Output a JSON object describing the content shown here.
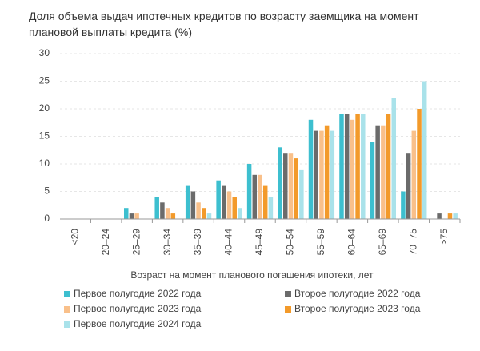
{
  "chart_data": {
    "type": "bar",
    "title": "Доля объема выдач ипотечных кредитов по возрасту заемщика на момент плановой выплаты кредита (%)",
    "x_label": "Возраст на момент планового погашения ипотеки, лет",
    "categories": [
      "<20",
      "20–24",
      "25–29",
      "30–34",
      "35–39",
      "40–44",
      "45–49",
      "50–54",
      "55–59",
      "60–64",
      "65–69",
      "70–75",
      ">75"
    ],
    "series": [
      {
        "name": "Первое полугодие 2022 года",
        "color": "#3dbfcf",
        "values": [
          0,
          0,
          2,
          4,
          6,
          7,
          10,
          13,
          18,
          19,
          14,
          5,
          0
        ]
      },
      {
        "name": "Второе полугодие 2022 года",
        "color": "#6b6b6b",
        "values": [
          0,
          0,
          1,
          3,
          5,
          6,
          8,
          12,
          16,
          19,
          17,
          12,
          1
        ]
      },
      {
        "name": "Первое полугодие 2023 года",
        "color": "#f9c08a",
        "values": [
          0,
          0,
          1,
          2,
          3,
          5,
          8,
          12,
          16,
          18,
          17,
          16,
          0
        ]
      },
      {
        "name": "Второе полугодие 2023 года",
        "color": "#f39a2a",
        "values": [
          0,
          0,
          0,
          1,
          2,
          4,
          6,
          11,
          17,
          19,
          19,
          20,
          1
        ]
      },
      {
        "name": "Первое полугодие 2024 года",
        "color": "#a9e2ea",
        "values": [
          0,
          0,
          0,
          0,
          1,
          2,
          4,
          9,
          16,
          19,
          22,
          25,
          1
        ]
      }
    ],
    "ylim": [
      0,
      30
    ],
    "yticks": [
      0,
      5,
      10,
      15,
      20,
      25,
      30
    ],
    "grid": true
  }
}
